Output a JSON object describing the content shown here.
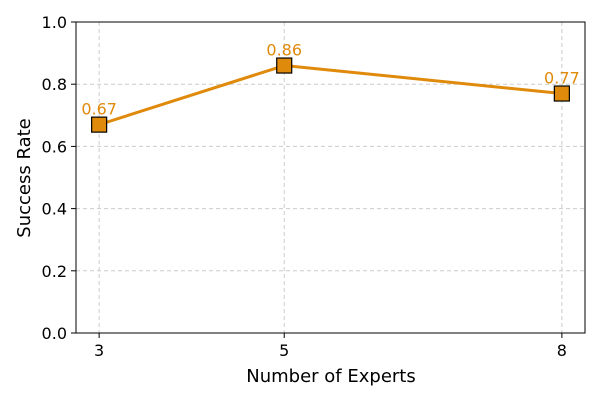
{
  "chart_data": {
    "type": "line",
    "title": "",
    "xlabel": "Number of Experts",
    "ylabel": "Success Rate",
    "x": [
      3,
      5,
      8
    ],
    "x_tick_labels": [
      "3",
      "5",
      "8"
    ],
    "xlim": [
      2.75,
      8.25
    ],
    "ylim": [
      0.0,
      1.0
    ],
    "y_ticks": [
      0.0,
      0.2,
      0.4,
      0.6,
      0.8,
      1.0
    ],
    "y_tick_labels": [
      "0.0",
      "0.2",
      "0.4",
      "0.6",
      "0.8",
      "1.0"
    ],
    "grid": true,
    "legend": "none",
    "series": [
      {
        "values": [
          0.67,
          0.86,
          0.77
        ],
        "data_labels": [
          "0.67",
          "0.86",
          "0.77"
        ],
        "color": "#e08a0b",
        "marker": "square",
        "marker_edge_color": "#000000"
      }
    ]
  }
}
